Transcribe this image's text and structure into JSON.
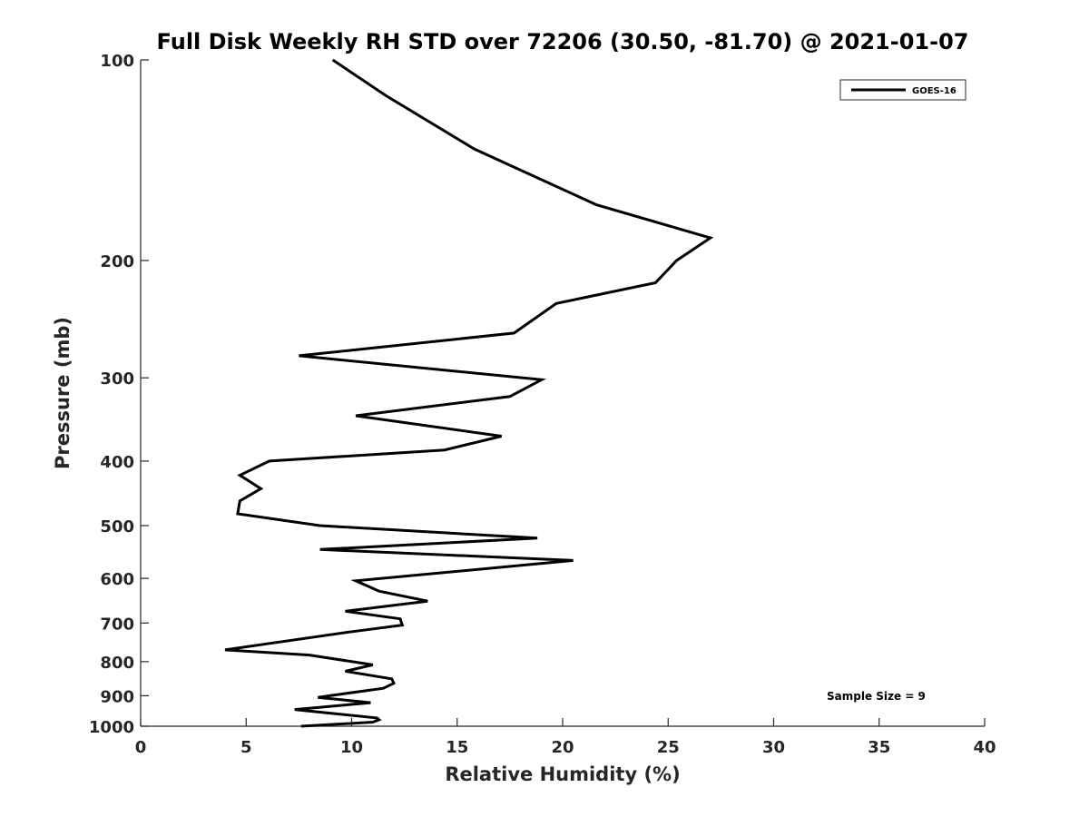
{
  "chart_data": {
    "type": "line",
    "title": "Full Disk Weekly RH STD over 72206 (30.50, -81.70) @ 2021-01-07",
    "xlabel": "Relative Humidity (%)",
    "ylabel": "Pressure (mb)",
    "xlim": [
      0,
      40
    ],
    "ylim": [
      100,
      1000
    ],
    "y_scale": "log",
    "y_reversed": true,
    "x_ticks": [
      "0",
      "5",
      "10",
      "15",
      "20",
      "25",
      "30",
      "35",
      "40"
    ],
    "y_ticks": [
      "100",
      "200",
      "300",
      "400",
      "500",
      "600",
      "700",
      "800",
      "900",
      "1000"
    ],
    "grid": false,
    "legend_position": "top-right",
    "series": [
      {
        "name": "GOES-16",
        "color": "#000000",
        "x": [
          9.1,
          11.6,
          15.8,
          21.6,
          27.0,
          25.4,
          24.4,
          19.7,
          17.7,
          7.5,
          19.0,
          17.5,
          10.2,
          17.1,
          14.4,
          6.1,
          4.7,
          5.7,
          4.7,
          4.6,
          8.5,
          18.8,
          8.5,
          20.5,
          10.2,
          11.3,
          13.6,
          9.7,
          12.3,
          12.4,
          9.9,
          4.0,
          8.0,
          11.0,
          9.7,
          11.9,
          12.0,
          11.5,
          8.4,
          10.9,
          7.3,
          11.2,
          11.3,
          11.0,
          7.6
        ],
        "y": [
          100,
          113,
          136,
          165,
          185,
          200,
          216,
          232,
          257,
          278,
          302,
          320,
          342,
          367,
          385,
          400,
          420,
          440,
          459,
          480,
          500,
          522,
          543,
          564,
          605,
          627,
          649,
          672,
          690,
          705,
          722,
          768,
          782,
          809,
          827,
          849,
          862,
          877,
          905,
          922,
          944,
          972,
          978,
          986,
          1000
        ]
      }
    ],
    "annotations": [
      {
        "text": "Sample Size = 9"
      }
    ]
  }
}
